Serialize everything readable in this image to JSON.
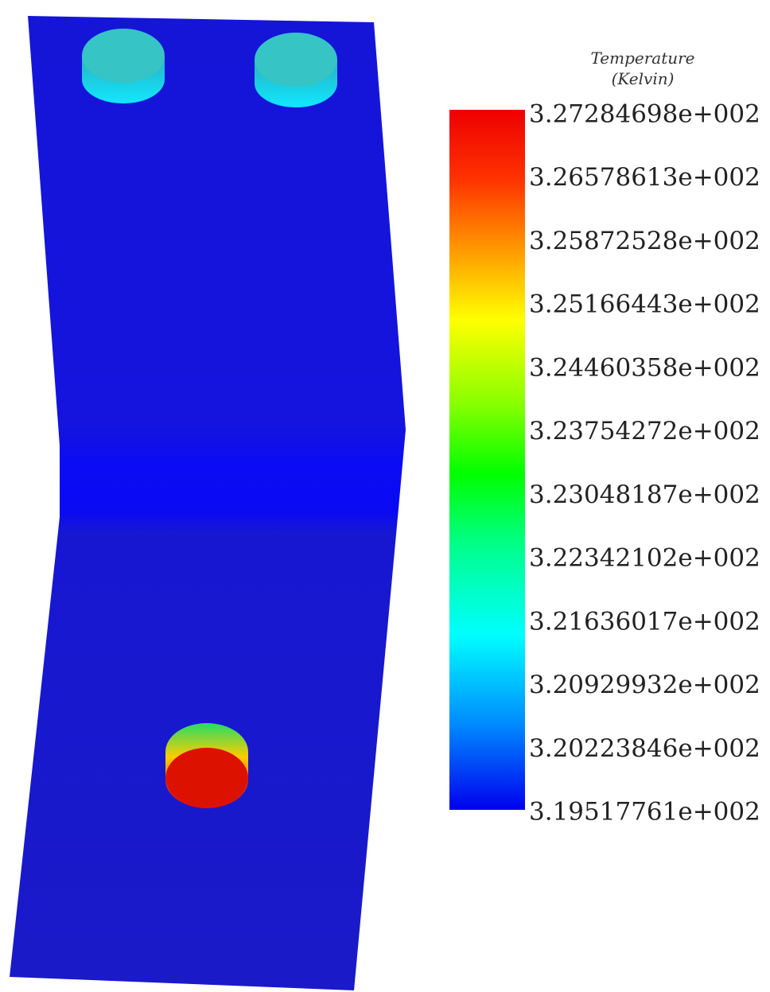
{
  "legend": {
    "title": "Temperature",
    "unit": "(Kelvin)",
    "labels": [
      "3.27284698e+002",
      "3.26578613e+002",
      "3.25872528e+002",
      "3.25166443e+002",
      "3.24460358e+002",
      "3.23754272e+002",
      "3.23048187e+002",
      "3.22342102e+002",
      "3.21636017e+002",
      "3.20929932e+002",
      "3.20223846e+002",
      "3.19517761e+002"
    ]
  }
}
